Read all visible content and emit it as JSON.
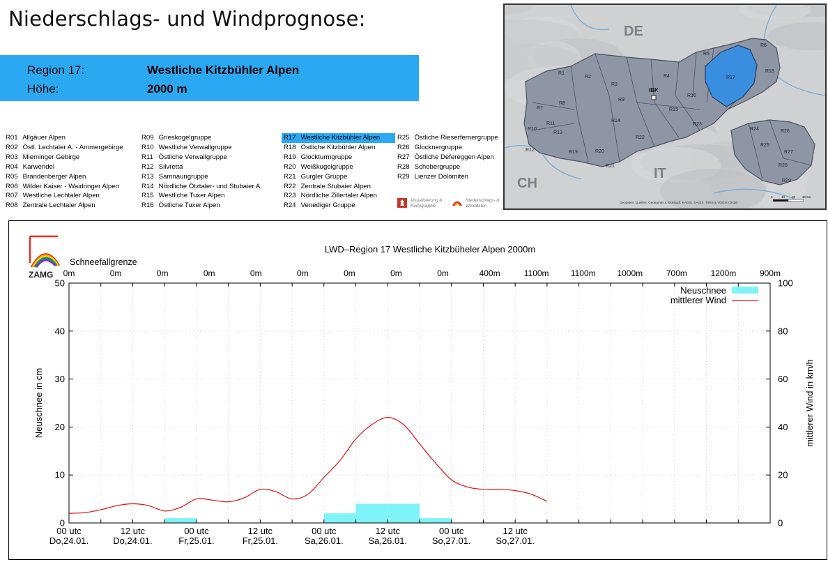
{
  "page": {
    "title": "Niederschlags- und Windprognose:"
  },
  "region_box": {
    "region_label": "Region 17:",
    "region_value": "Westliche Kitzbühler Alpen",
    "height_label": "Höhe:",
    "height_value": "2000 m",
    "color": "#2ba8f2"
  },
  "region_legend": {
    "active_code": "R17",
    "columns": [
      [
        {
          "code": "R01",
          "name": "Allgäuer Alpen"
        },
        {
          "code": "R02",
          "name": "Östl. Lechtaler A. - Ammergebirge"
        },
        {
          "code": "R03",
          "name": "Mieminger Gebirge"
        },
        {
          "code": "R04",
          "name": "Karwendel"
        },
        {
          "code": "R05",
          "name": "Brandenberger Alpen"
        },
        {
          "code": "R06",
          "name": "Wilder Kaiser - Waidringer Alpen"
        },
        {
          "code": "R07",
          "name": "Westliche Lechtaler Alpen"
        },
        {
          "code": "R08",
          "name": "Zentrale Lechtaler Alpen"
        }
      ],
      [
        {
          "code": "R09",
          "name": "Grieskogelgruppe"
        },
        {
          "code": "R10",
          "name": "Westliche Verwallgruppe"
        },
        {
          "code": "R11",
          "name": "Östliche Verwallgruppe"
        },
        {
          "code": "R12",
          "name": "Silvretta"
        },
        {
          "code": "R13",
          "name": "Samnaungruppe"
        },
        {
          "code": "R14",
          "name": "Nördliche Ötztaler- und Stubaier A."
        },
        {
          "code": "R15",
          "name": "Westliche Tuxer Alpen"
        },
        {
          "code": "R16",
          "name": "Östliche Tuxer Alpen"
        }
      ],
      [
        {
          "code": "R17",
          "name": "Westliche Kitzbühler Alpen"
        },
        {
          "code": "R18",
          "name": "Östliche Kitzbühler Alpen"
        },
        {
          "code": "R19",
          "name": "Glockturmgruppe"
        },
        {
          "code": "R20",
          "name": "Weißkugelgruppe"
        },
        {
          "code": "R21",
          "name": "Gurgler Gruppe"
        },
        {
          "code": "R22",
          "name": "Zentrale Stubaier Alpen"
        },
        {
          "code": "R23",
          "name": "Nördliche Zillertaler Alpen"
        },
        {
          "code": "R24",
          "name": "Venediger Gruppe"
        }
      ],
      [
        {
          "code": "R25",
          "name": "Östliche Rieserfernergruppe"
        },
        {
          "code": "R26",
          "name": "Glocknergruppe"
        },
        {
          "code": "R27",
          "name": "Östliche Defereggen Alpen"
        },
        {
          "code": "R28",
          "name": "Schobergruppe"
        },
        {
          "code": "R29",
          "name": "Lienzer Dolomiten"
        }
      ]
    ],
    "logos": [
      {
        "line1": "Visualisierung &",
        "line2": "Kartographie"
      },
      {
        "line1": "Niederschlags- &",
        "line2": "Winddaten"
      }
    ]
  },
  "map": {
    "country_labels": [
      "DE",
      "IT",
      "CH"
    ],
    "ibk_label": "IBK",
    "source_text": "Geodaten: Quellen: Geonames.v. Esristadt, KAGIS, SAGIS, TIRIS & VOGIS (2018)",
    "scale_labels": [
      "0",
      "10",
      "20",
      "30 km"
    ],
    "highlight_color": "#3a8ee0",
    "region_color": "#8e96a6",
    "regions": [
      {
        "code": "R1"
      },
      {
        "code": "R2"
      },
      {
        "code": "R3"
      },
      {
        "code": "R4"
      },
      {
        "code": "R5"
      },
      {
        "code": "R6"
      },
      {
        "code": "R7"
      },
      {
        "code": "R8"
      },
      {
        "code": "R9"
      },
      {
        "code": "R10"
      },
      {
        "code": "R11"
      },
      {
        "code": "R12"
      },
      {
        "code": "R13"
      },
      {
        "code": "R14"
      },
      {
        "code": "R15"
      },
      {
        "code": "R16"
      },
      {
        "code": "R17"
      },
      {
        "code": "R18"
      },
      {
        "code": "R19"
      },
      {
        "code": "R20"
      },
      {
        "code": "R21"
      },
      {
        "code": "R22"
      },
      {
        "code": "R23"
      },
      {
        "code": "R24"
      },
      {
        "code": "R25"
      },
      {
        "code": "R26"
      },
      {
        "code": "R27"
      },
      {
        "code": "R28"
      },
      {
        "code": "R29"
      }
    ]
  },
  "chart_data": {
    "type": "bar",
    "title": "LWD–Region 17 Westliche Kitzbüheler Alpen 2000m",
    "logo_text": "ZAMG",
    "snowline_label": "Schneefallgrenze",
    "snowline": [
      "0m",
      "0m",
      "0m",
      "0m",
      "0m",
      "0m",
      "0m",
      "0m",
      "0m",
      "400m",
      "1100m",
      "1100m",
      "1000m",
      "700m",
      "1200m",
      "900m"
    ],
    "ylabel": "Neuschnee in cm",
    "y2label": "mittlerer Wind in km/h",
    "ylim": [
      0,
      50
    ],
    "y2lim": [
      0,
      100
    ],
    "yticks": [
      0,
      10,
      20,
      30,
      40,
      50
    ],
    "y2ticks": [
      0,
      20,
      40,
      60,
      80,
      100
    ],
    "x_hours_range": [
      0,
      132
    ],
    "x_ticks": [
      {
        "h": 0,
        "line1": "00 utc",
        "line2": "Do,24.01."
      },
      {
        "h": 12,
        "line1": "12 utc",
        "line2": "Do,24.01."
      },
      {
        "h": 24,
        "line1": "00 utc",
        "line2": "Fr,25.01."
      },
      {
        "h": 36,
        "line1": "12 utc",
        "line2": "Fr,25.01."
      },
      {
        "h": 48,
        "line1": "00 utc",
        "line2": "Sa,26.01."
      },
      {
        "h": 60,
        "line1": "12 utc",
        "line2": "Sa,26.01."
      },
      {
        "h": 72,
        "line1": "00 utc",
        "line2": "So,27.01."
      },
      {
        "h": 84,
        "line1": "12 utc",
        "line2": "So,27.01."
      }
    ],
    "grid": true,
    "legend_position": "top-right",
    "series": [
      {
        "name": "Neuschnee",
        "kind": "bar",
        "color": "#7ff4f8",
        "bars": [
          {
            "start": 42,
            "end": 48,
            "value": 0
          },
          {
            "start": 18,
            "end": 24,
            "value": 1
          },
          {
            "start": 48,
            "end": 54,
            "value": 2
          },
          {
            "start": 54,
            "end": 60,
            "value": 4
          },
          {
            "start": 60,
            "end": 66,
            "value": 4
          },
          {
            "start": 66,
            "end": 72,
            "value": 1
          }
        ]
      },
      {
        "name": "mittlerer Wind",
        "kind": "line",
        "axis": "right",
        "color": "#e01010",
        "x": [
          0,
          3,
          6,
          9,
          12,
          15,
          18,
          21,
          24,
          27,
          30,
          33,
          36,
          39,
          42,
          45,
          48,
          51,
          54,
          57,
          60,
          63,
          66,
          69,
          72,
          75,
          78,
          81,
          84,
          87,
          90
        ],
        "y": [
          4,
          4.3,
          5.5,
          7.2,
          8,
          7.2,
          5,
          6.5,
          10,
          9.5,
          8.8,
          10.5,
          14,
          13,
          10,
          12,
          19,
          26,
          35,
          41,
          44,
          41,
          33,
          25,
          18,
          15,
          14,
          14,
          13.5,
          12,
          9
        ]
      }
    ]
  }
}
